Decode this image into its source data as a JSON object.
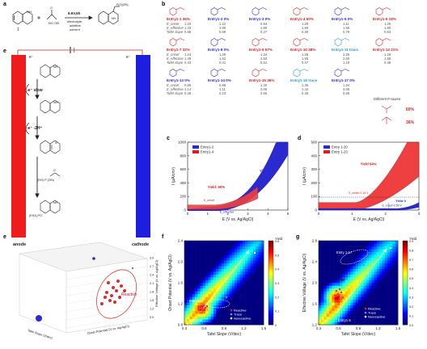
{
  "labels": {
    "a": "a",
    "b": "b",
    "c": "c",
    "d": "d",
    "e_top": "e",
    "e_bot": "e",
    "f": "f",
    "g": "g"
  },
  "panel_a": {
    "reactant": "1",
    "condition_top": "6.6V,6h",
    "condition_mid": "electrolyte",
    "condition_add": "additive",
    "condition_sol": "solvent"
  },
  "panel_e_mech": {
    "e_minus_left": "e⁻",
    "e_minus_right": "e⁻",
    "step1": "-e⁻ slow",
    "step2": "-e⁻ -2H⁺",
    "phosphite": "(EtO)₂PO",
    "anode": "anode",
    "cathode": "cathode"
  },
  "row_labels": [
    "E_onset",
    "E_effective",
    "Tafel slope"
  ],
  "entries": [
    {
      "name": "Entry1-1 36%",
      "color": "red",
      "vals": [
        "1.20",
        "1.33",
        "0.68"
      ]
    },
    {
      "name": "Entry1-2 0%",
      "color": "blue",
      "vals": [
        "1.22",
        "1.80",
        "0.69"
      ]
    },
    {
      "name": "Entry1-3 0%",
      "color": "blue",
      "vals": [
        "0.84",
        "1.80",
        "0.27"
      ]
    },
    {
      "name": "Entry1-4 60%",
      "color": "red",
      "vals": [
        "1.29",
        "1.60",
        "0.39"
      ]
    },
    {
      "name": "Entry1-5 0%",
      "color": "blue",
      "vals": [
        "1.11",
        "1.59",
        "0.79"
      ]
    },
    {
      "name": "Entry1-6 18%",
      "color": "red",
      "vals": [
        "1.26",
        "1.80",
        "0.63"
      ]
    },
    {
      "name": "Entry1-7 32%",
      "color": "red",
      "vals": [
        "1.24",
        "1.49",
        "0.43"
      ]
    },
    {
      "name": "Entry1-8 0%",
      "color": "blue",
      "vals": [
        "1.29",
        "1.52",
        "0.41"
      ]
    },
    {
      "name": "Entry1-9 57%",
      "color": "red",
      "vals": [
        "1.34",
        "2.50",
        "0.51"
      ]
    },
    {
      "name": "Entry1-10 38%",
      "color": "red",
      "vals": [
        "1.28",
        "1.55",
        "0.47"
      ]
    },
    {
      "name": "Entry1-11 trace",
      "color": "cyan",
      "vals": [
        "2.25",
        "2.60",
        "1.19"
      ]
    },
    {
      "name": "Entry1-12 21%",
      "color": "red",
      "vals": [
        "1.26",
        "1.86",
        "0.48"
      ]
    },
    {
      "name": "Entry1-13 0%",
      "color": "blue",
      "vals": [
        "0.85",
        "1.14",
        "0.28"
      ]
    },
    {
      "name": "Entry1-14 0%",
      "color": "blue",
      "vals": [
        "0.88",
        "1.11",
        "0.23"
      ]
    },
    {
      "name": "Entry1-15 36%",
      "color": "red",
      "vals": [
        "1.20",
        "2.05",
        "0.65"
      ]
    },
    {
      "name": "Entry1-16 trace",
      "color": "cyan",
      "vals": [
        "1.35",
        "1.42",
        "0.45"
      ]
    },
    {
      "name": "Entry1-17 0%",
      "color": "blue",
      "vals": [
        "1.84",
        "3.06",
        "0.65"
      ]
    }
  ],
  "p_source": {
    "title": "Different P source",
    "y1": "60%",
    "y2": "36%"
  },
  "panel_c": {
    "legend": [
      "Entry1-2",
      "Entry1-4"
    ],
    "colors": [
      "#2a2ad0",
      "#d42020"
    ],
    "xlabel": "E (V vs. Ag/AgCl)",
    "ylabel": "I (μA/cm²)",
    "yield_blue": "Yield: 0",
    "yield_red": "Yield: 60%",
    "e_onset": "E_onset",
    "e_eff": "E_effective",
    "xticks": [
      "0",
      "1",
      "2",
      "3",
      "4",
      "5"
    ],
    "yticks": [
      "0",
      "200",
      "400",
      "600",
      "800",
      "1000"
    ]
  },
  "panel_d": {
    "legend": [
      "Entry 1-20",
      "Entry 1-23"
    ],
    "colors": [
      "#2a2ad0",
      "#d42020"
    ],
    "xlabel": "E (V vs. Ag/AgCl)",
    "ylabel": "I (μA/cm²)",
    "yield_red": "Yield 64%",
    "yield_blue": "Yield 0",
    "xticks": [
      "0",
      "1",
      "2",
      "3"
    ],
    "yticks": [
      "0",
      "100",
      "200",
      "300",
      "400",
      "500"
    ],
    "ann1": "E_onset=1.16 V",
    "ann2": "E_onset=2.59 V"
  },
  "panel_e3d": {
    "xlabel": "Tafel Slope (V/dec)",
    "ylabel": "Onset Potential (V vs. Ag/AgCl)",
    "zlabel": "Effective Voltage (V vs. Ag/AgCl)",
    "label": "Reactive",
    "zticks": [
      "0.9",
      "1.2",
      "1.5",
      "1.8",
      "2.1",
      "2.4",
      "2.7",
      "3.0"
    ]
  },
  "panel_f": {
    "xlabel": "Tafel Slope (V/dec)",
    "ylabel": "Onset Potential (V vs. Ag/AgCl)",
    "colorbar_title": "Yield",
    "cbar_ticks": [
      "0.6",
      "0.5",
      "0.4",
      "0.3",
      "0.2",
      "0.1",
      "0"
    ],
    "xticks": [
      "0.3",
      "0.6",
      "0.9",
      "1.2",
      "1.5"
    ],
    "yticks": [
      "0.8",
      "1.2",
      "1.6",
      "2.0",
      "2.4"
    ],
    "ann1": "Entry1-17",
    "ann2": "Entry1-5",
    "legend": [
      "Reactive",
      "Trace",
      "Nonreactive"
    ]
  },
  "panel_g": {
    "xlabel": "Tafel Slope (V/dec)",
    "ylabel": "Effective Voltage (V vs. Ag/AgCl)",
    "colorbar_title": "Yield",
    "cbar_ticks": [
      "0.9",
      "0.8",
      "0.7",
      "0.6",
      "0.5",
      "0.4",
      "0.3",
      "0.2",
      "0.1",
      "0.0"
    ],
    "xticks": [
      "0.3",
      "0.6",
      "0.9",
      "1.2",
      "1.5"
    ],
    "yticks": [
      "1.2",
      "1.6",
      "2.0",
      "2.4",
      "2.8"
    ],
    "ann1": "Entry 1-17",
    "ann2": "Entry1-5",
    "ann3": "0.59",
    "legend": [
      "Reactive",
      "Trace",
      "Nonreactive"
    ]
  }
}
